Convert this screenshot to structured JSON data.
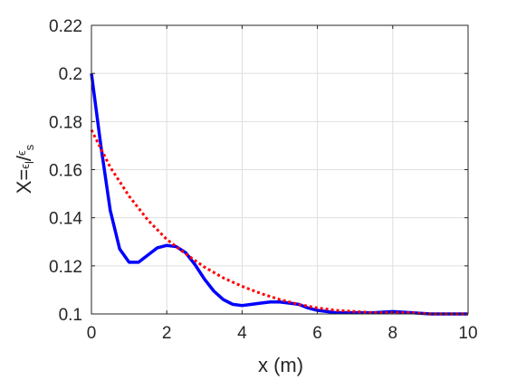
{
  "chart_data": {
    "type": "line",
    "xlabel": "x (m)",
    "ylabel": {
      "prefix": "X=",
      "numerator_symbol": "ϵ",
      "numerator_sub": "l",
      "separator": "/",
      "denominator_symbol": "ϵ",
      "denominator_sub": "s"
    },
    "xlim": [
      0,
      10
    ],
    "ylim": [
      0.1,
      0.22
    ],
    "x_ticks": [
      0,
      2,
      4,
      6,
      8,
      10
    ],
    "y_ticks": [
      0.1,
      0.12,
      0.14,
      0.16,
      0.18,
      0.2,
      0.22
    ],
    "x_tick_labels": [
      "0",
      "2",
      "4",
      "6",
      "8",
      "10"
    ],
    "y_tick_labels": [
      "0.1",
      "0.12",
      "0.14",
      "0.16",
      "0.18",
      "0.2",
      "0.22"
    ],
    "grid": true,
    "series": [
      {
        "color": "#0000ff",
        "style": "solid",
        "x": [
          0,
          0.25,
          0.5,
          0.75,
          1.0,
          1.25,
          1.5,
          1.75,
          2.0,
          2.25,
          2.5,
          2.75,
          3.0,
          3.25,
          3.5,
          3.75,
          4.0,
          4.25,
          4.5,
          4.75,
          5.0,
          5.25,
          5.5,
          5.75,
          6.0,
          6.5,
          7.0,
          7.5,
          8.0,
          8.5,
          9.0,
          9.5,
          10.0
        ],
        "y": [
          0.2,
          0.17,
          0.143,
          0.127,
          0.1215,
          0.1215,
          0.1245,
          0.1275,
          0.1285,
          0.128,
          0.1255,
          0.1205,
          0.1145,
          0.1095,
          0.106,
          0.104,
          0.1035,
          0.104,
          0.1045,
          0.105,
          0.105,
          0.1045,
          0.104,
          0.1025,
          0.1015,
          0.1005,
          0.1005,
          0.1005,
          0.101,
          0.1005,
          0.1,
          0.1,
          0.1
        ]
      },
      {
        "color": "#ff0000",
        "style": "dotted",
        "x": [
          0,
          0.5,
          1.0,
          1.5,
          2.0,
          2.5,
          3.0,
          3.5,
          4.0,
          4.5,
          5.0,
          5.5,
          6.0,
          6.5,
          7.0,
          7.5,
          8.0,
          8.5,
          9.0,
          9.5,
          10.0
        ],
        "y": [
          0.1765,
          0.161,
          0.149,
          0.139,
          0.131,
          0.125,
          0.1195,
          0.115,
          0.1115,
          0.1085,
          0.106,
          0.104,
          0.1025,
          0.1015,
          0.101,
          0.1005,
          0.1005,
          0.1005,
          0.1,
          0.1,
          0.1
        ]
      }
    ]
  }
}
